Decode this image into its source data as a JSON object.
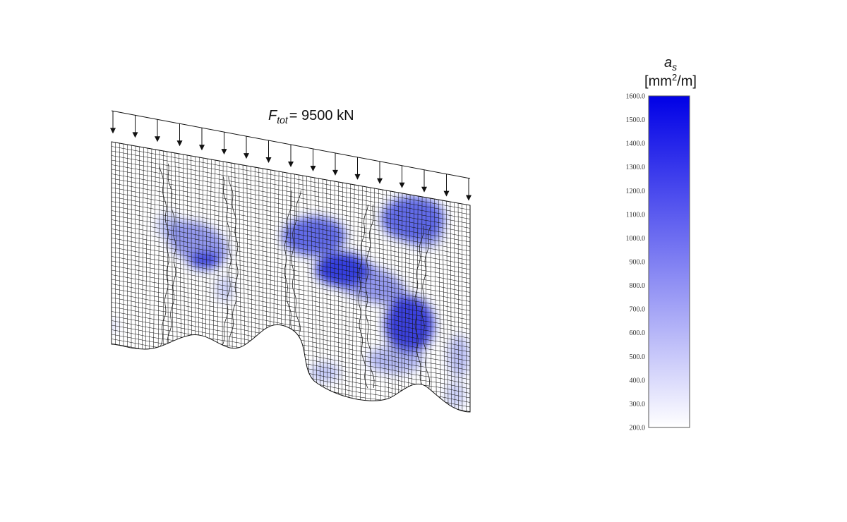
{
  "load": {
    "symbol": "F",
    "subscript": "tot",
    "equals_value": "= 9500 kN"
  },
  "legend": {
    "symbol": "a",
    "subscript": "s",
    "unit_prefix": "[mm",
    "unit_sup": "2",
    "unit_suffix": "/m]",
    "ticks": [
      "1600.0",
      "1500.0",
      "1400.0",
      "1300.0",
      "1200.0",
      "1100.0",
      "1000.0",
      "900.0",
      "800.0",
      "700.0",
      "600.0",
      "500.0",
      "400.0",
      "300.0",
      "200.0"
    ],
    "color_max": "#0000e6",
    "color_min": "#ffffff"
  },
  "colors": {
    "mesh_line": "#111111",
    "reinforcement_blue": "#2233dd"
  }
}
